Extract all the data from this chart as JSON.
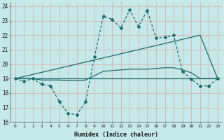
{
  "xlabel": "Humidex (Indice chaleur)",
  "background_color": "#c5e8e8",
  "grid_color": "#d8b4b4",
  "line_color": "#1e6b6b",
  "xlim": [
    -0.5,
    23.5
  ],
  "ylim": [
    16,
    24.3
  ],
  "xticks": [
    0,
    1,
    2,
    3,
    4,
    5,
    6,
    7,
    8,
    9,
    10,
    11,
    12,
    13,
    14,
    15,
    16,
    17,
    18,
    19,
    20,
    21,
    22,
    23
  ],
  "yticks": [
    16,
    17,
    18,
    19,
    20,
    21,
    22,
    23,
    24
  ],
  "series1_x": [
    0,
    1,
    2,
    3,
    4,
    5,
    6,
    7,
    8,
    9,
    10,
    11,
    12,
    13,
    14,
    15,
    16,
    17,
    18,
    19,
    20,
    21,
    22,
    23
  ],
  "series1_y": [
    19.0,
    18.8,
    19.0,
    18.6,
    18.5,
    17.4,
    16.6,
    16.5,
    17.4,
    20.5,
    23.3,
    23.1,
    22.5,
    23.75,
    22.6,
    23.7,
    21.8,
    21.85,
    22.0,
    19.5,
    18.95,
    18.5,
    18.5,
    19.0
  ],
  "series2_x": [
    0,
    23
  ],
  "series2_y": [
    19.0,
    19.0
  ],
  "series3_x": [
    0,
    21,
    23
  ],
  "series3_y": [
    19.0,
    22.0,
    19.0
  ],
  "series4_x": [
    0,
    1,
    2,
    3,
    4,
    5,
    6,
    7,
    8,
    9,
    10,
    11,
    12,
    13,
    14,
    15,
    16,
    17,
    18,
    19,
    20,
    21,
    22,
    23
  ],
  "series4_y": [
    19.0,
    19.0,
    19.0,
    18.9,
    18.9,
    18.9,
    18.85,
    18.85,
    18.9,
    19.2,
    19.5,
    19.55,
    19.6,
    19.65,
    19.65,
    19.65,
    19.7,
    19.75,
    19.75,
    19.6,
    19.4,
    19.0,
    19.0,
    19.0
  ]
}
